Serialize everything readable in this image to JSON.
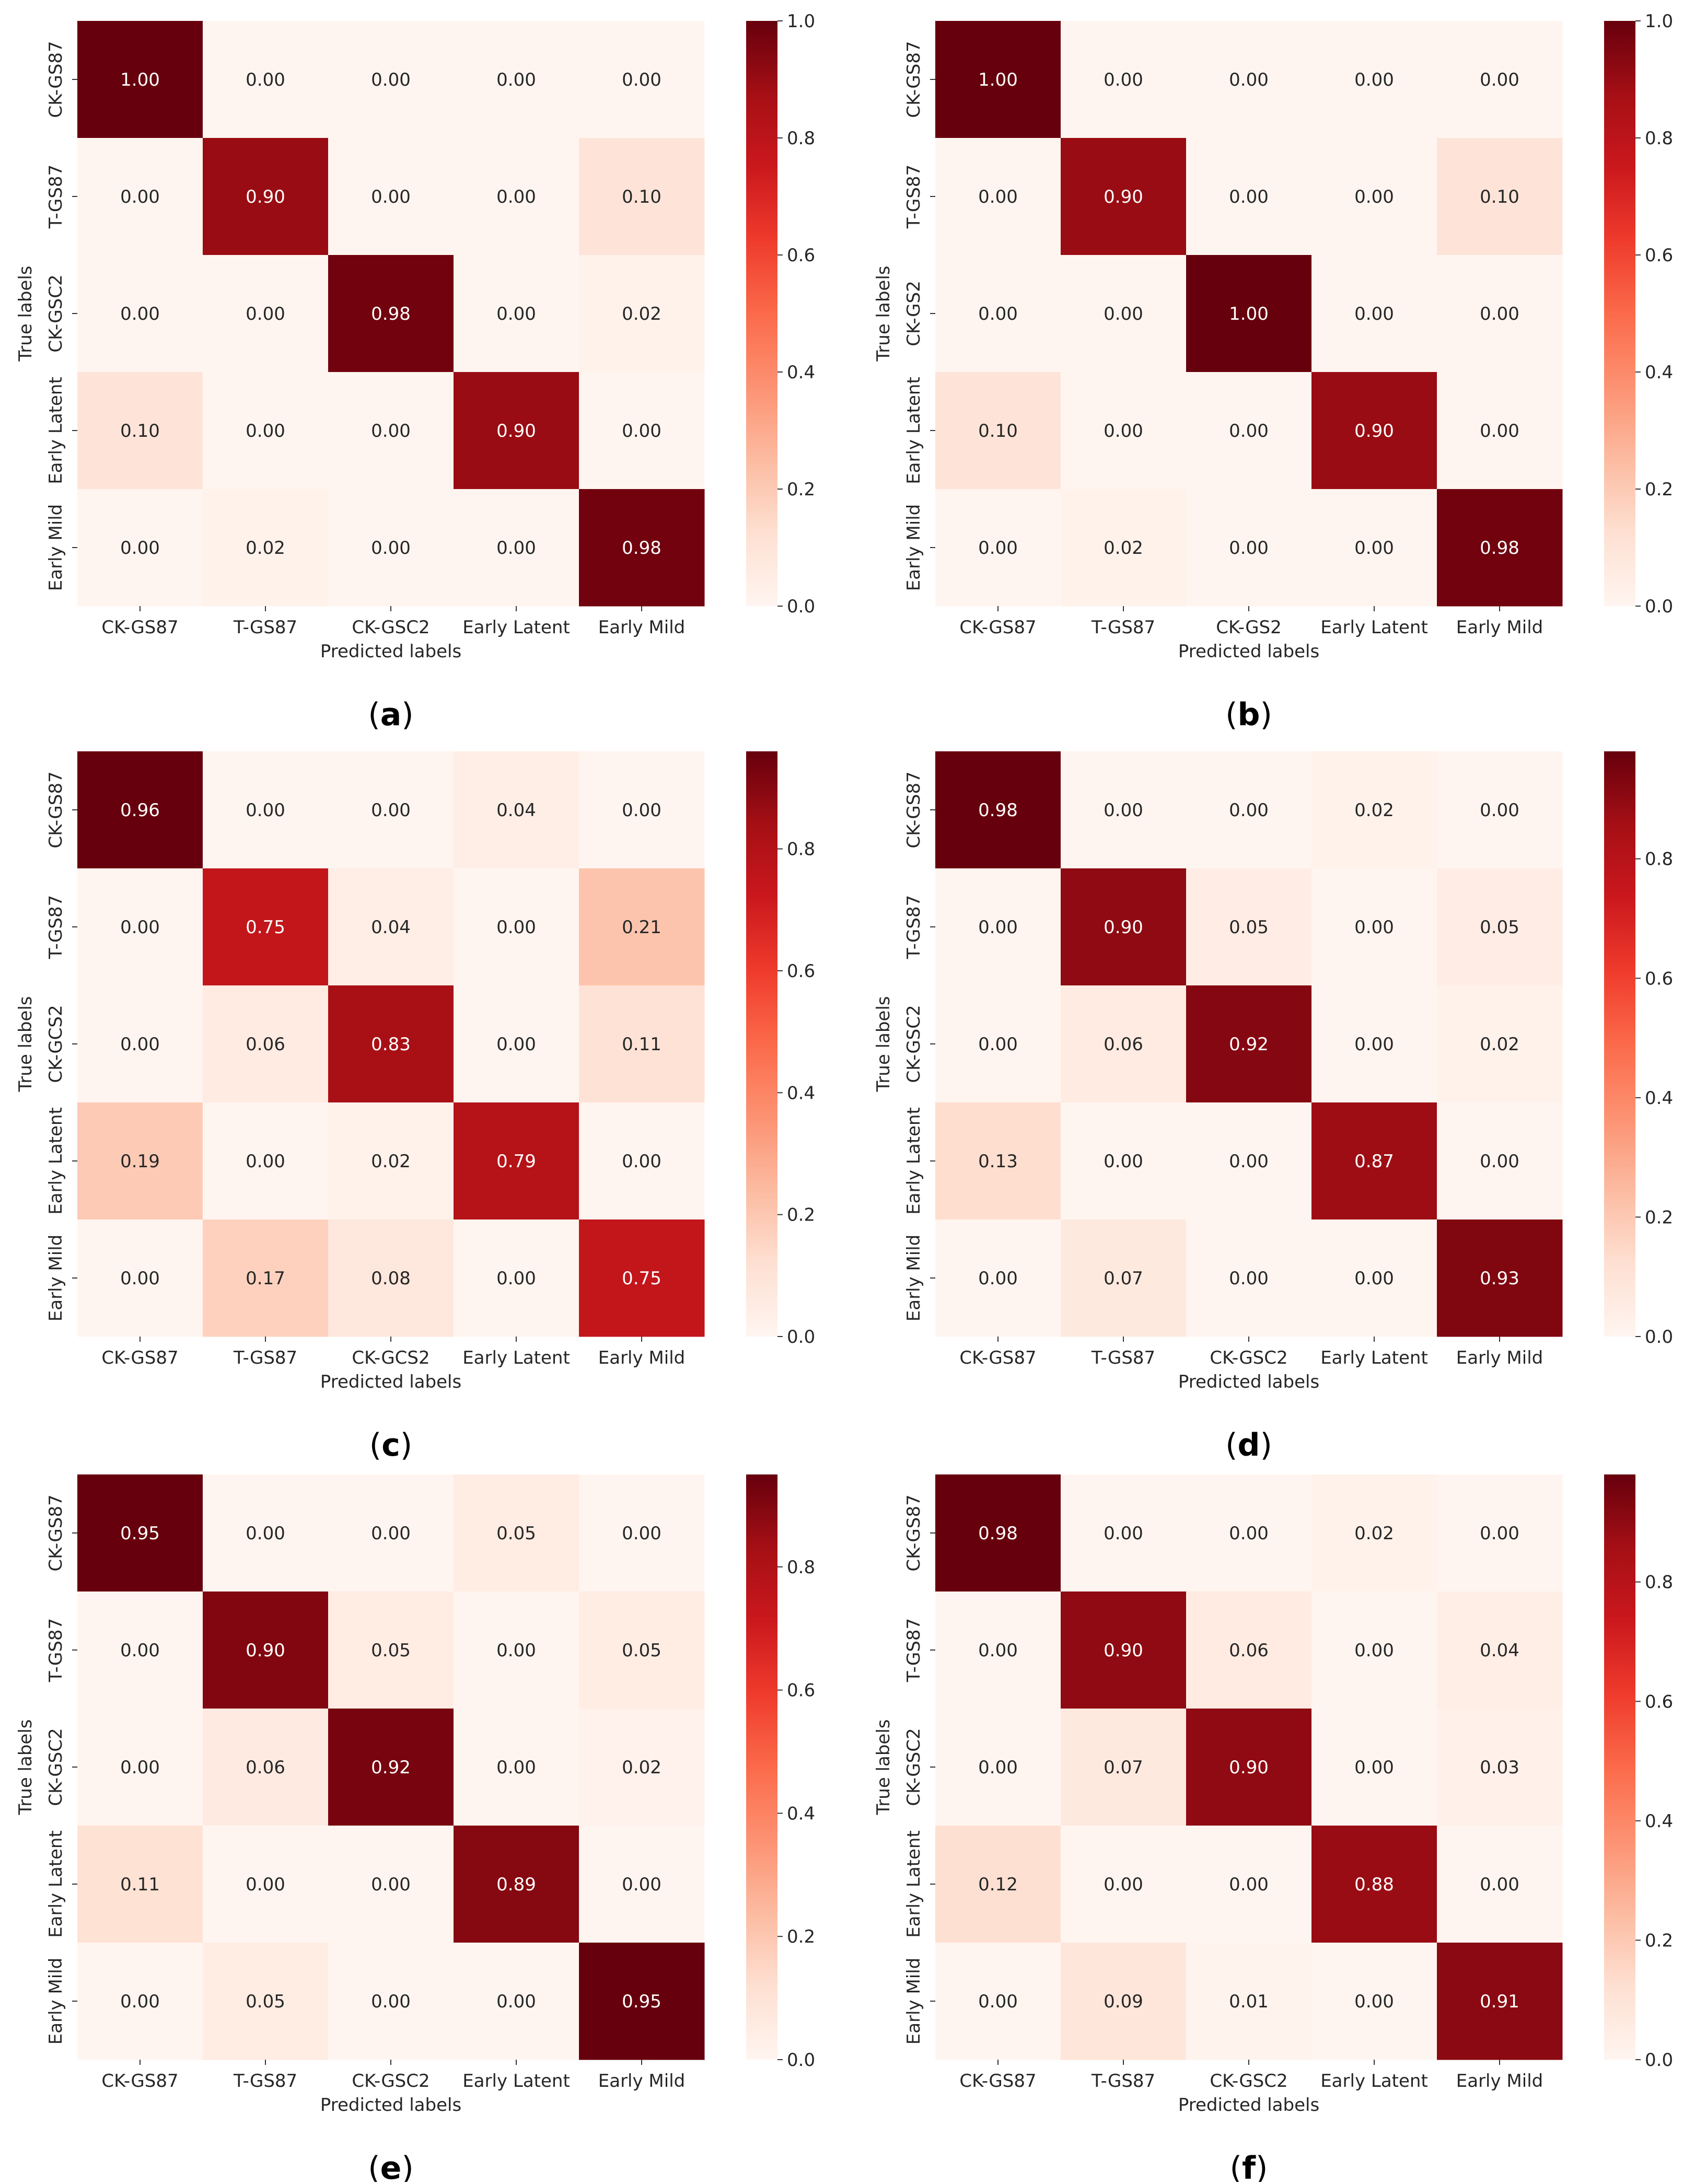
{
  "colormap": {
    "name": "Reds",
    "stops": [
      "#fff5f0",
      "#fee0d2",
      "#fcbba1",
      "#fc9272",
      "#fb6a4a",
      "#ef3b2c",
      "#cb181d",
      "#a50f15",
      "#67000d"
    ],
    "text_light": "#ffffff",
    "text_dark": "#262626"
  },
  "chart_data": [
    {
      "panel": "(a)",
      "type": "heatmap",
      "xlabel": "Predicted labels",
      "ylabel": "True labels",
      "x_categories": [
        "CK-GS87",
        "T-GS87",
        "CK-GSC2",
        "Early Latent",
        "Early Mild"
      ],
      "y_categories": [
        "CK-GS87",
        "T-GS87",
        "CK-GSC2",
        "Early Latent",
        "Early Mild"
      ],
      "values": [
        [
          1.0,
          0.0,
          0.0,
          0.0,
          0.0
        ],
        [
          0.0,
          0.9,
          0.0,
          0.0,
          0.1
        ],
        [
          0.0,
          0.0,
          0.98,
          0.0,
          0.02
        ],
        [
          0.1,
          0.0,
          0.0,
          0.9,
          0.0
        ],
        [
          0.0,
          0.02,
          0.0,
          0.0,
          0.98
        ]
      ],
      "vmin": 0.0,
      "vmax": 1.0,
      "colorbar_ticks": [
        "0.0",
        "0.2",
        "0.4",
        "0.6",
        "0.8",
        "1.0"
      ]
    },
    {
      "panel": "(b)",
      "type": "heatmap",
      "xlabel": "Predicted labels",
      "ylabel": "True labels",
      "x_categories": [
        "CK-GS87",
        "T-GS87",
        "CK-GS2",
        "Early Latent",
        "Early Mild"
      ],
      "y_categories": [
        "CK-GS87",
        "T-GS87",
        "CK-GS2",
        "Early Latent",
        "Early Mild"
      ],
      "values": [
        [
          1.0,
          0.0,
          0.0,
          0.0,
          0.0
        ],
        [
          0.0,
          0.9,
          0.0,
          0.0,
          0.1
        ],
        [
          0.0,
          0.0,
          1.0,
          0.0,
          0.0
        ],
        [
          0.1,
          0.0,
          0.0,
          0.9,
          0.0
        ],
        [
          0.0,
          0.02,
          0.0,
          0.0,
          0.98
        ]
      ],
      "vmin": 0.0,
      "vmax": 1.0,
      "colorbar_ticks": [
        "0.0",
        "0.2",
        "0.4",
        "0.6",
        "0.8",
        "1.0"
      ]
    },
    {
      "panel": "(c)",
      "type": "heatmap",
      "xlabel": "Predicted labels",
      "ylabel": "True labels",
      "x_categories": [
        "CK-GS87",
        "T-GS87",
        "CK-GCS2",
        "Early Latent",
        "Early Mild"
      ],
      "y_categories": [
        "CK-GS87",
        "T-GS87",
        "CK-GCS2",
        "Early Latent",
        "Early Mild"
      ],
      "values": [
        [
          0.96,
          0.0,
          0.0,
          0.04,
          0.0
        ],
        [
          0.0,
          0.75,
          0.04,
          0.0,
          0.21
        ],
        [
          0.0,
          0.06,
          0.83,
          0.0,
          0.11
        ],
        [
          0.19,
          0.0,
          0.02,
          0.79,
          0.0
        ],
        [
          0.0,
          0.17,
          0.08,
          0.0,
          0.75
        ]
      ],
      "vmin": 0.0,
      "vmax": 0.96,
      "colorbar_ticks": [
        "0.0",
        "0.2",
        "0.4",
        "0.6",
        "0.8"
      ]
    },
    {
      "panel": "(d)",
      "type": "heatmap",
      "xlabel": "Predicted labels",
      "ylabel": "True labels",
      "x_categories": [
        "CK-GS87",
        "T-GS87",
        "CK-GSC2",
        "Early Latent",
        "Early Mild"
      ],
      "y_categories": [
        "CK-GS87",
        "T-GS87",
        "CK-GSC2",
        "Early Latent",
        "Early Mild"
      ],
      "values": [
        [
          0.98,
          0.0,
          0.0,
          0.02,
          0.0
        ],
        [
          0.0,
          0.9,
          0.05,
          0.0,
          0.05
        ],
        [
          0.0,
          0.06,
          0.92,
          0.0,
          0.02
        ],
        [
          0.13,
          0.0,
          0.0,
          0.87,
          0.0
        ],
        [
          0.0,
          0.07,
          0.0,
          0.0,
          0.93
        ]
      ],
      "vmin": 0.0,
      "vmax": 0.98,
      "colorbar_ticks": [
        "0.0",
        "0.2",
        "0.4",
        "0.6",
        "0.8"
      ]
    },
    {
      "panel": "(e)",
      "type": "heatmap",
      "xlabel": "Predicted labels",
      "ylabel": "True labels",
      "x_categories": [
        "CK-GS87",
        "T-GS87",
        "CK-GSC2",
        "Early Latent",
        "Early Mild"
      ],
      "y_categories": [
        "CK-GS87",
        "T-GS87",
        "CK-GSC2",
        "Early Latent",
        "Early Mild"
      ],
      "values": [
        [
          0.95,
          0.0,
          0.0,
          0.05,
          0.0
        ],
        [
          0.0,
          0.9,
          0.05,
          0.0,
          0.05
        ],
        [
          0.0,
          0.06,
          0.92,
          0.0,
          0.02
        ],
        [
          0.11,
          0.0,
          0.0,
          0.89,
          0.0
        ],
        [
          0.0,
          0.05,
          0.0,
          0.0,
          0.95
        ]
      ],
      "vmin": 0.0,
      "vmax": 0.95,
      "colorbar_ticks": [
        "0.0",
        "0.2",
        "0.4",
        "0.6",
        "0.8"
      ]
    },
    {
      "panel": "(f)",
      "type": "heatmap",
      "xlabel": "Predicted labels",
      "ylabel": "True labels",
      "x_categories": [
        "CK-GS87",
        "T-GS87",
        "CK-GSC2",
        "Early Latent",
        "Early Mild"
      ],
      "y_categories": [
        "CK-GS87",
        "T-GS87",
        "CK-GSC2",
        "Early Latent",
        "Early Mild"
      ],
      "values": [
        [
          0.98,
          0.0,
          0.0,
          0.02,
          0.0
        ],
        [
          0.0,
          0.9,
          0.06,
          0.0,
          0.04
        ],
        [
          0.0,
          0.07,
          0.9,
          0.0,
          0.03
        ],
        [
          0.12,
          0.0,
          0.0,
          0.88,
          0.0
        ],
        [
          0.0,
          0.09,
          0.01,
          0.0,
          0.91
        ]
      ],
      "vmin": 0.0,
      "vmax": 0.98,
      "colorbar_ticks": [
        "0.0",
        "0.2",
        "0.4",
        "0.6",
        "0.8"
      ]
    }
  ]
}
